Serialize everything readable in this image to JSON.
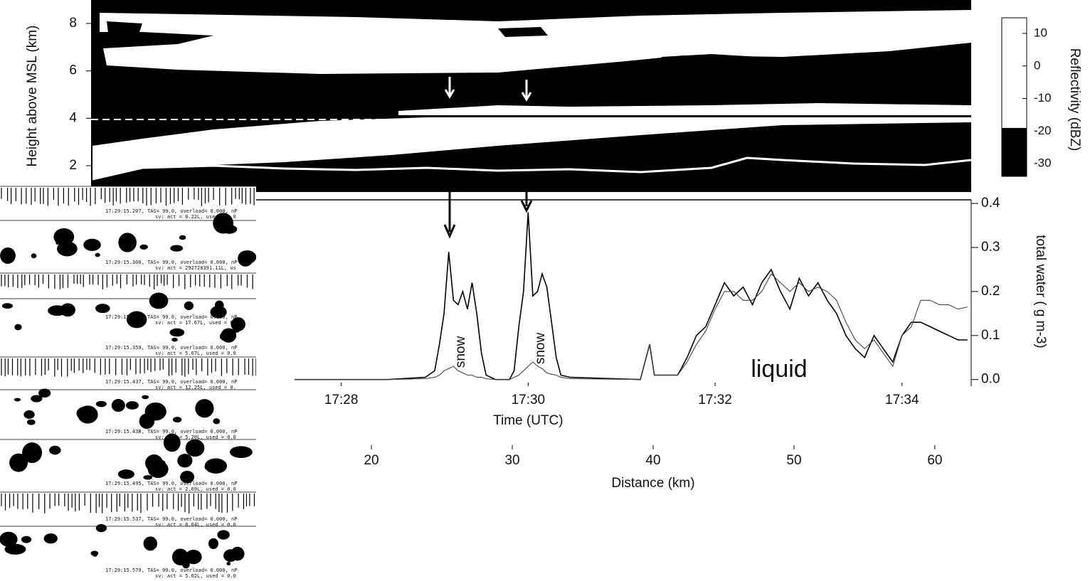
{
  "chart_data": [
    {
      "type": "radar",
      "ylabel": "Height above MSL (km)",
      "ylim": [
        0.89,
        8.99
      ],
      "yticks": [
        2,
        4,
        6,
        8
      ],
      "colorbar": {
        "label": "Reflectivity (dBZ)",
        "lim": [
          -33.9,
          14.8
        ],
        "ticks": [
          10,
          0,
          -10,
          -20,
          -30
        ],
        "segments": [
          {
            "from": -33.9,
            "to": -19,
            "color": "#000000"
          },
          {
            "from": -19,
            "to": 14.8,
            "color": "#ffffff"
          }
        ]
      }
    },
    {
      "type": "line",
      "xlabel": "Time (UTC)",
      "xlim": [
        27.47,
        34.74
      ],
      "xticks": [
        {
          "value": 28,
          "label": "17:28"
        },
        {
          "value": 30,
          "label": "17:30"
        },
        {
          "value": 32,
          "label": "17:32"
        },
        {
          "value": 34,
          "label": "17:34"
        }
      ],
      "x2label": "Distance (km)",
      "x2lim": [
        14.34,
        62.58
      ],
      "x2ticks": [
        20,
        30,
        40,
        50,
        60
      ],
      "ylabel": "total water ( g m-3)",
      "ylim": [
        -0.015,
        0.405
      ],
      "yticks": [
        {
          "value": 0,
          "label": "0.0"
        },
        0.1,
        0.2,
        0.3,
        0.4
      ],
      "annotations": [
        "snow",
        "snow",
        "liquid"
      ],
      "x": [
        27.5,
        28.0,
        28.5,
        28.9,
        29.0,
        29.05,
        29.1,
        29.15,
        29.2,
        29.25,
        29.3,
        29.35,
        29.4,
        29.45,
        29.5,
        29.55,
        29.65,
        29.8,
        29.85,
        29.9,
        29.95,
        30.0,
        30.05,
        30.1,
        30.15,
        30.2,
        30.25,
        30.3,
        30.35,
        30.45,
        31.2,
        31.3,
        31.35,
        31.6,
        31.7,
        31.8,
        31.9,
        32.0,
        32.1,
        32.2,
        32.3,
        32.4,
        32.5,
        32.6,
        32.7,
        32.8,
        32.9,
        33.0,
        33.1,
        33.2,
        33.3,
        33.4,
        33.5,
        33.6,
        33.7,
        33.8,
        33.9,
        34.0,
        34.1,
        34.2,
        34.3,
        34.4,
        34.5,
        34.6,
        34.7
      ],
      "series": [
        {
          "color": "#000000",
          "values": [
            0,
            0,
            0,
            0.005,
            0.02,
            0.08,
            0.15,
            0.29,
            0.18,
            0.17,
            0.2,
            0.16,
            0.22,
            0.15,
            0.06,
            0.01,
            0,
            0,
            0.02,
            0.12,
            0.2,
            0.38,
            0.19,
            0.2,
            0.24,
            0.21,
            0.13,
            0.05,
            0.01,
            0.005,
            0,
            0.08,
            0.01,
            0.01,
            0.05,
            0.1,
            0.12,
            0.17,
            0.22,
            0.19,
            0.21,
            0.17,
            0.22,
            0.25,
            0.2,
            0.16,
            0.23,
            0.19,
            0.22,
            0.18,
            0.15,
            0.1,
            0.07,
            0.05,
            0.1,
            0.07,
            0.04,
            0.1,
            0.13,
            0.13,
            0.12,
            0.11,
            0.1,
            0.09,
            0.09
          ]
        },
        {
          "color": "#444444",
          "values": [
            0,
            0,
            0,
            0.002,
            0.005,
            0.01,
            0.02,
            0.025,
            0.03,
            0.02,
            0.015,
            0.01,
            0.01,
            0.005,
            0.005,
            0.002,
            0,
            0,
            0.005,
            0.01,
            0.02,
            0.03,
            0.04,
            0.03,
            0.025,
            0.015,
            0.012,
            0.01,
            0.005,
            0.002,
            0,
            0.08,
            0.01,
            0.01,
            0.04,
            0.08,
            0.11,
            0.16,
            0.2,
            0.2,
            0.18,
            0.18,
            0.2,
            0.24,
            0.22,
            0.2,
            0.22,
            0.2,
            0.21,
            0.2,
            0.18,
            0.13,
            0.09,
            0.07,
            0.09,
            0.06,
            0.03,
            0.1,
            0.12,
            0.18,
            0.18,
            0.17,
            0.17,
            0.16,
            0.165
          ]
        }
      ]
    }
  ],
  "probe_images": {
    "frames": [
      {
        "time_line": "17:29:15.207, TAS= 99.0, overload= 0.000, nP",
        "sv_line": "sv: act = 8.22L, used = 0.0"
      },
      {
        "time_line": "17:29:15.300, TAS= 99.0, overload= 0.000, nP",
        "sv_line": "sv: act = 292728391.11L, us"
      },
      {
        "time_line": "17:29:15.327, TAS= 99.0, overload= 0.000, nP",
        "sv_line": "sv: act = 17.67L, used = 0."
      },
      {
        "time_line": "17:29:15.359, TAS= 99.0, overload= 0.000, nP",
        "sv_line": "sv: act = 5.67L, used = 0.0"
      },
      {
        "time_line": "17:29:15.437, TAS= 99.0, overload= 0.000, nP",
        "sv_line": "sv: act = 12.25L, used = 0."
      },
      {
        "time_line": "17:29:15.438, TAS= 99.0, overload= 0.000, nP",
        "sv_line": "sv: act = 5.20L, used = 0.0"
      },
      {
        "time_line": "17:29:15.495, TAS= 99.0, overload= 0.000, nP",
        "sv_line": "sv: act = 2.69L, used = 0.0"
      },
      {
        "time_line": "17:29:15.537, TAS= 99.0, overload= 0.000, nP",
        "sv_line": "sv: act = 8.04L, used = 0.0"
      },
      {
        "time_line": "17:29:15.579, TAS= 99.0, overload= 0.000, nP",
        "sv_line": "sv: act = 5.02L, used = 0.0"
      }
    ]
  }
}
